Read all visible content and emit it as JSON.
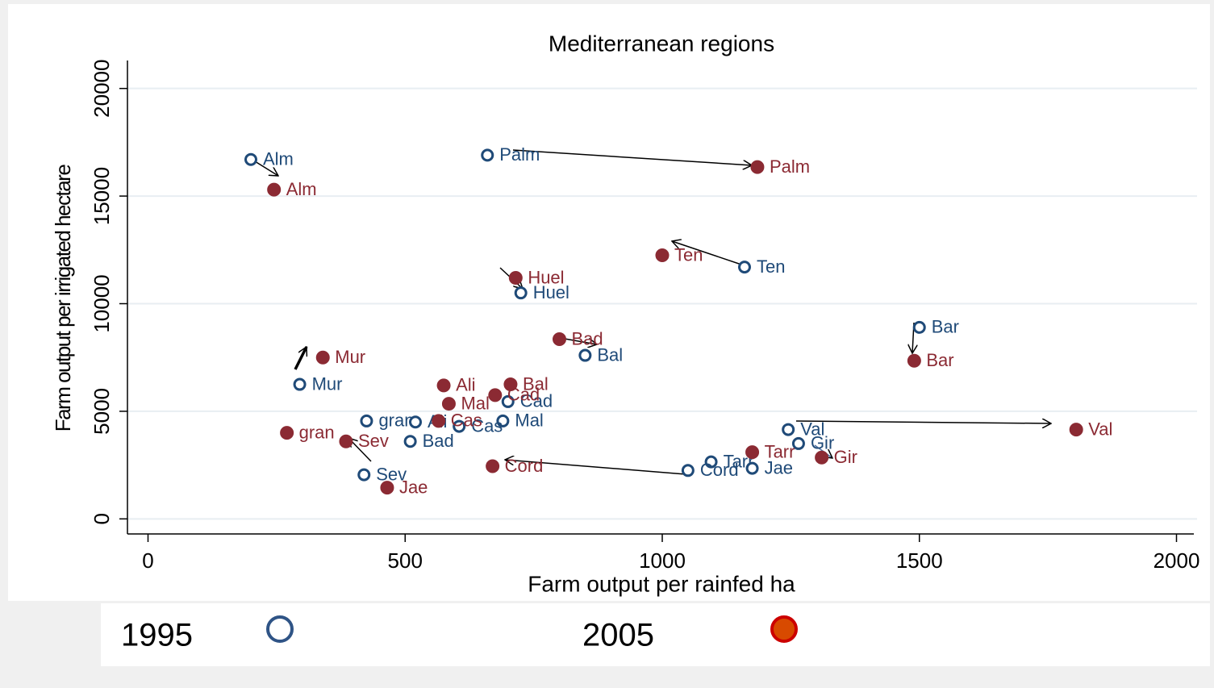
{
  "chart_data": {
    "type": "scatter",
    "title": "Mediterranean regions",
    "x_label": "Farm output per rainfed ha",
    "y_label": "Farm output per irrigated hectare",
    "xlim": [
      -40,
      2040
    ],
    "ylim": [
      -700,
      21300
    ],
    "xticks": [
      0,
      500,
      1000,
      1500,
      2000
    ],
    "yticks": [
      0,
      5000,
      10000,
      15000,
      20000
    ],
    "grid": true,
    "legend_position": "bottom",
    "series": [
      {
        "name": "1995",
        "color": "#1f4a78",
        "legend_color": "#2f5486",
        "filled": false,
        "labels": [
          "Alm",
          "Palm",
          "Ten",
          "Huel",
          "Bar",
          "Bal",
          "Mur",
          "Cad",
          "gran",
          "Ali",
          "Mal",
          "Cas",
          "Bad",
          "Val",
          "Gir",
          "Tarr",
          "Jae",
          "Cord",
          "Sev"
        ],
        "x": [
          200,
          660,
          1160,
          725,
          1500,
          850,
          295,
          700,
          425,
          520,
          690,
          605,
          510,
          1245,
          1265,
          1095,
          1175,
          1050,
          420
        ],
        "values": [
          16700,
          16900,
          11700,
          10500,
          8900,
          7600,
          6250,
          5450,
          4550,
          4500,
          4550,
          4300,
          3600,
          4150,
          3500,
          2650,
          2350,
          2250,
          2050
        ]
      },
      {
        "name": "2005",
        "color": "#8b2a33",
        "legend_color": "#d84a00",
        "filled": true,
        "labels": [
          "Alm",
          "Palm",
          "Ten",
          "Huel",
          "Bad",
          "Bar",
          "Mur",
          "Ali",
          "Bal",
          "Cad",
          "Mal",
          "Cas",
          "gran",
          "Sev",
          "Tarr",
          "Gir",
          "Cord",
          "Jae",
          "Val"
        ],
        "x": [
          245,
          1185,
          1000,
          715,
          800,
          1490,
          340,
          575,
          705,
          675,
          585,
          565,
          270,
          385,
          1175,
          1310,
          670,
          465,
          1805
        ],
        "values": [
          15300,
          16350,
          12250,
          11200,
          8350,
          7350,
          7500,
          6200,
          6250,
          5750,
          5350,
          4550,
          4000,
          3600,
          3100,
          2850,
          2450,
          1450,
          4150
        ]
      }
    ]
  }
}
